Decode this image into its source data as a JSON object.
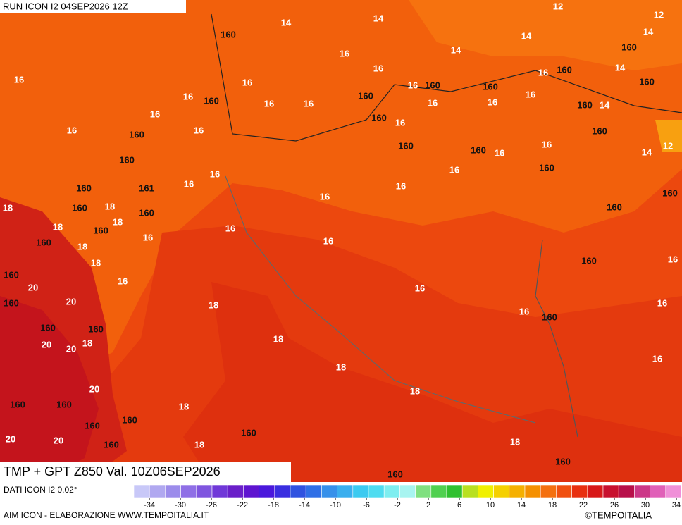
{
  "header": {
    "run": "RUN ICON I2 04SEP2026 12Z"
  },
  "title": "TMP + GPT Z850 Val. 10Z06SEP2026",
  "map_labels": [
    "14",
    "14",
    "12",
    "12",
    "14",
    "14",
    "14",
    "160",
    "16",
    "16",
    "160",
    "160",
    "16",
    "14",
    "160",
    "16",
    "16",
    "16",
    "160",
    "16",
    "16",
    "160",
    "160",
    "16",
    "160",
    "16",
    "16",
    "16",
    "160",
    "14",
    "16",
    "160",
    "16",
    "16",
    "160",
    "16",
    "160",
    "12",
    "160",
    "160",
    "160",
    "16",
    "16",
    "14",
    "16",
    "16",
    "160",
    "16",
    "160",
    "161",
    "16",
    "16",
    "160",
    "18",
    "160",
    "18",
    "160",
    "160",
    "18",
    "18",
    "160",
    "16",
    "16",
    "160",
    "18",
    "16",
    "18",
    "160",
    "16",
    "160",
    "16",
    "20",
    "16",
    "160",
    "20",
    "18",
    "16",
    "160",
    "16",
    "160",
    "160",
    "20",
    "20",
    "18",
    "18",
    "18",
    "16",
    "20",
    "18",
    "160",
    "160",
    "18",
    "160",
    "160",
    "160",
    "20",
    "20",
    "160",
    "18",
    "18",
    "160",
    "160"
  ],
  "legend": {
    "colors": [
      "#c8c8f8",
      "#b0a8f0",
      "#9c8ceb",
      "#8f6fe6",
      "#7f55df",
      "#7038d8",
      "#6a1fc9",
      "#5e14d0",
      "#4a18dc",
      "#3a2ee0",
      "#2f52e0",
      "#2f6fe6",
      "#3690ea",
      "#3aaeee",
      "#3ccaf0",
      "#4fdcf0",
      "#7eeef0",
      "#a8f4f0",
      "#80e080",
      "#50d050",
      "#30c030",
      "#b8e020",
      "#f0f000",
      "#f5d000",
      "#f5b000",
      "#f59000",
      "#f47010",
      "#f05010",
      "#e83010",
      "#d81818",
      "#c8102e",
      "#b8104a",
      "#cc3888",
      "#e060b8",
      "#f090d8"
    ],
    "ticks": [
      -34,
      -30,
      -26,
      -22,
      -18,
      -14,
      -10,
      -6,
      -2,
      2,
      6,
      10,
      14,
      18,
      22,
      26,
      30,
      34
    ]
  },
  "footer": {
    "source": "DATI ICON I2 0.02°",
    "credit": "AIM ICON - ELABORAZIONE WWW.TEMPOITALIA.IT",
    "copyright": "©TEMPOITALIA"
  }
}
